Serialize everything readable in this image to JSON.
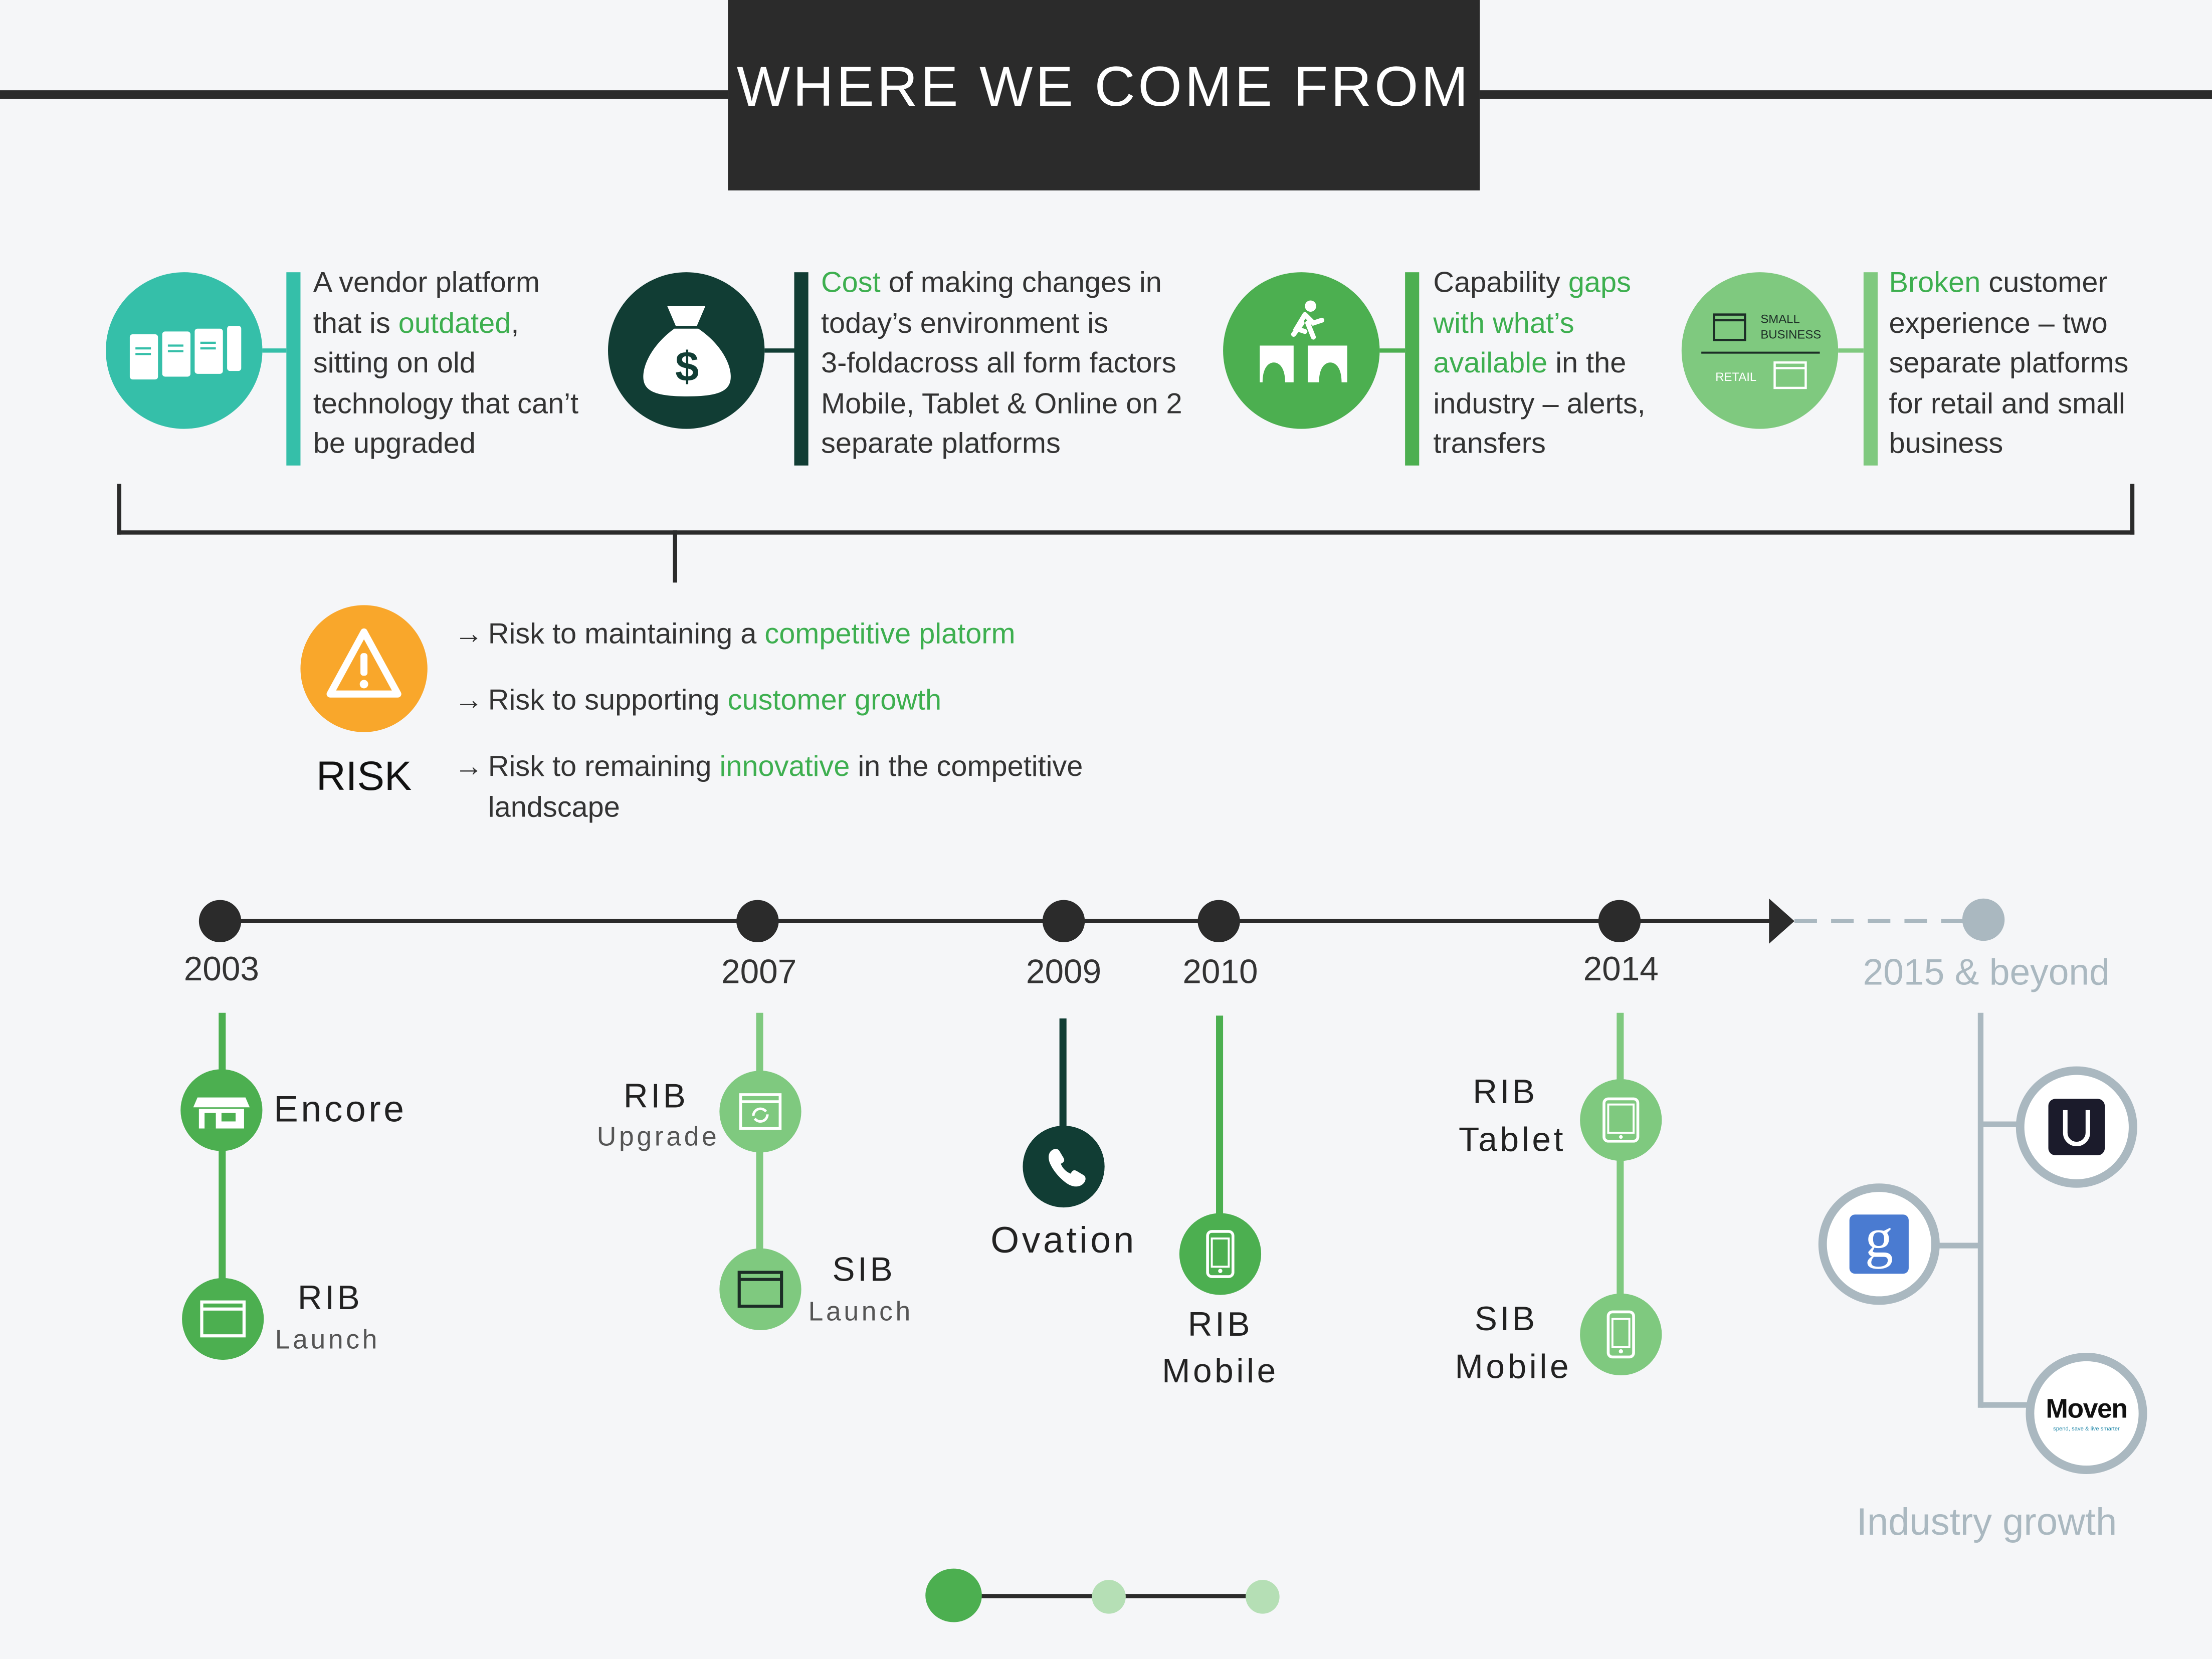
{
  "header": {
    "title": "WHERE WE COME FROM"
  },
  "issues": {
    "vendor": {
      "l1": "A vendor platform",
      "l2a": "that is ",
      "l2b": "outdated",
      "l2c": ",",
      "l3": "sitting on old",
      "l4": "technology that can’t",
      "l5": "be upgraded"
    },
    "cost": {
      "l1a": "Cost",
      "l1b": " of making changes  in",
      "l2": "today’s environment  is",
      "l3": "3-foldacross all form factors",
      "l4": "Mobile, Tablet & Online on 2",
      "l5": "separate platforms"
    },
    "capability": {
      "l1a": "Capability ",
      "l1b": "gaps",
      "l2": "with what’s",
      "l3a": "available",
      "l3b": " in the",
      "l4": "industry – alerts,",
      "l5": "transfers"
    },
    "broken": {
      "l1a": "Broken",
      "l1b": " customer",
      "l2": "experience – two",
      "l3": "separate platforms",
      "l4": "for retail and small",
      "l5": "business"
    },
    "icon_small_business": {
      "l1": "SMALL",
      "l2": "BUSINESS",
      "retail": "RETAIL"
    }
  },
  "risk": {
    "label": "RISK",
    "items": [
      {
        "pre": "Risk to maintaining a ",
        "em": "competitive platorm",
        "post": ""
      },
      {
        "pre": "Risk to supporting ",
        "em": "customer growth",
        "post": ""
      },
      {
        "pre": "Risk to remaining ",
        "em": "innovative",
        "post": " in the competitive",
        "l2": "landscape"
      }
    ]
  },
  "timeline": {
    "years": [
      "2003",
      "2007",
      "2009",
      "2010",
      "2014",
      "2015 & beyond"
    ],
    "milestones": {
      "encore": "Encore",
      "rib_launch": {
        "title": "RIB",
        "sub": "Launch"
      },
      "rib_upgrade": {
        "title": "RIB",
        "sub": "Upgrade"
      },
      "sib_launch": {
        "title": "SIB",
        "sub": "Launch"
      },
      "ovation": "Ovation",
      "rib_mobile": {
        "l1": "RIB",
        "l2": "Mobile"
      },
      "rib_tablet": {
        "l1": "RIB",
        "l2": "Tablet"
      },
      "sib_mobile": {
        "l1": "SIB",
        "l2": "Mobile"
      }
    },
    "industry": {
      "label": "Industry growth",
      "moven": "Moven",
      "moven_tag": "spend, save & live smarter",
      "google_glyph": "g"
    }
  },
  "colors": {
    "dark": "#2b2b2b",
    "teal": "#35bfa9",
    "dark_green": "#113d34",
    "green": "#4caf50",
    "light_green": "#7fc97f",
    "orange": "#f9a72b",
    "gray": "#aab8c0"
  }
}
